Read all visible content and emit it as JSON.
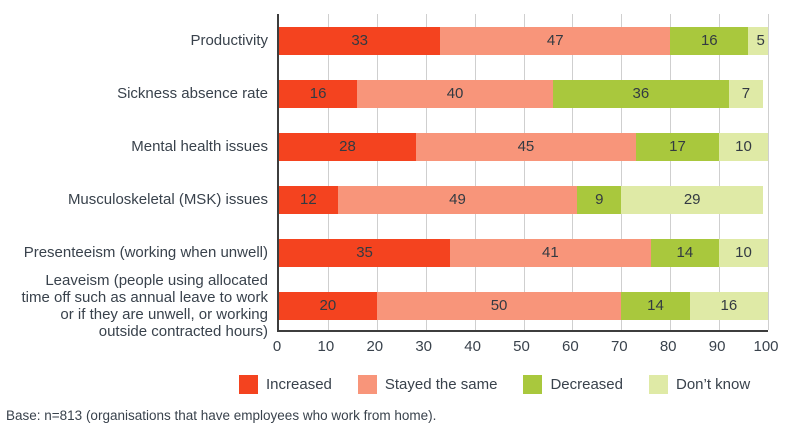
{
  "chart_data": {
    "type": "bar",
    "stacked": true,
    "orientation": "horizontal",
    "title": "",
    "xlabel": "",
    "ylabel": "",
    "xlim": [
      0,
      100
    ],
    "xticks": [
      0,
      10,
      20,
      30,
      40,
      50,
      60,
      70,
      80,
      90,
      100
    ],
    "grid": true,
    "legend_position": "bottom",
    "categories": [
      "Productivity",
      "Sickness absence rate",
      "Mental health issues",
      "Musculoskeletal (MSK) issues",
      "Presenteeism (working when unwell)",
      "Leaveism (people using allocated\ntime off such as annual leave to work\nor if they are unwell, or working\noutside contracted hours)"
    ],
    "series": [
      {
        "name": "Increased",
        "color": "#f4431f",
        "values": [
          33,
          16,
          28,
          12,
          35,
          20
        ]
      },
      {
        "name": "Stayed the same",
        "color": "#f8957a",
        "values": [
          47,
          40,
          45,
          49,
          41,
          50
        ]
      },
      {
        "name": "Decreased",
        "color": "#a9c83d",
        "values": [
          16,
          36,
          17,
          9,
          14,
          14
        ]
      },
      {
        "name": "Don’t know",
        "color": "#dfeaa6",
        "values": [
          5,
          7,
          10,
          29,
          10,
          16
        ]
      }
    ]
  },
  "colors": {
    "axis": "#3d3d3d",
    "gridline": "#cfcfcf",
    "text": "#39424c"
  },
  "footer": {
    "text": "Base: n=813 (organisations that have employees who work from home)."
  }
}
